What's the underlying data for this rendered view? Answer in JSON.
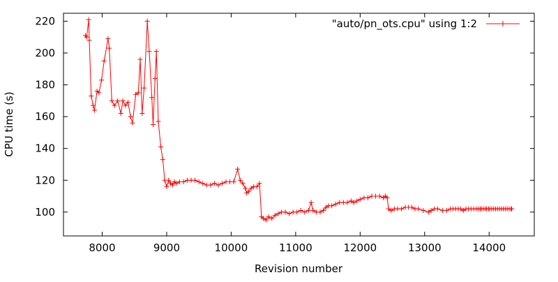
{
  "chart_data": {
    "type": "line",
    "title": "",
    "xlabel": "Revision number",
    "ylabel": "CPU time (s)",
    "xlim": [
      7400,
      14700
    ],
    "ylim": [
      85,
      225
    ],
    "grid": false,
    "legend_position": "top-right",
    "marker": "plus",
    "x_ticks": [
      8000,
      9000,
      10000,
      11000,
      12000,
      13000,
      14000
    ],
    "y_ticks": [
      100,
      120,
      140,
      160,
      180,
      200,
      220
    ],
    "series": [
      {
        "name": "\"auto/pn_ots.cpu\" using 1:2",
        "color": "#ff0000",
        "points": [
          [
            7740,
            211
          ],
          [
            7760,
            210
          ],
          [
            7790,
            221
          ],
          [
            7800,
            208
          ],
          [
            7830,
            173
          ],
          [
            7860,
            167
          ],
          [
            7880,
            164
          ],
          [
            7920,
            176
          ],
          [
            7950,
            175
          ],
          [
            7990,
            183
          ],
          [
            8030,
            195
          ],
          [
            8090,
            209
          ],
          [
            8110,
            203
          ],
          [
            8150,
            170
          ],
          [
            8190,
            167
          ],
          [
            8240,
            170
          ],
          [
            8290,
            162
          ],
          [
            8320,
            170
          ],
          [
            8360,
            167
          ],
          [
            8400,
            169
          ],
          [
            8440,
            160
          ],
          [
            8470,
            156
          ],
          [
            8520,
            174
          ],
          [
            8560,
            175
          ],
          [
            8590,
            196
          ],
          [
            8620,
            162
          ],
          [
            8650,
            178
          ],
          [
            8700,
            220
          ],
          [
            8730,
            201
          ],
          [
            8770,
            172
          ],
          [
            8790,
            155
          ],
          [
            8820,
            184
          ],
          [
            8840,
            201
          ],
          [
            8870,
            157
          ],
          [
            8910,
            141
          ],
          [
            8940,
            133
          ],
          [
            8970,
            120
          ],
          [
            9000,
            116
          ],
          [
            9030,
            120
          ],
          [
            9060,
            118
          ],
          [
            9090,
            117
          ],
          [
            9120,
            119
          ],
          [
            9150,
            118
          ],
          [
            9200,
            119
          ],
          [
            9260,
            119
          ],
          [
            9320,
            120
          ],
          [
            9380,
            120
          ],
          [
            9440,
            120
          ],
          [
            9500,
            119
          ],
          [
            9560,
            118
          ],
          [
            9620,
            117
          ],
          [
            9680,
            117
          ],
          [
            9740,
            118
          ],
          [
            9800,
            117
          ],
          [
            9860,
            118
          ],
          [
            9920,
            119
          ],
          [
            9980,
            119
          ],
          [
            10040,
            119
          ],
          [
            10100,
            127
          ],
          [
            10140,
            120
          ],
          [
            10180,
            118
          ],
          [
            10220,
            115
          ],
          [
            10240,
            112
          ],
          [
            10270,
            113
          ],
          [
            10310,
            115
          ],
          [
            10350,
            116
          ],
          [
            10400,
            116
          ],
          [
            10440,
            118
          ],
          [
            10470,
            97
          ],
          [
            10500,
            96
          ],
          [
            10540,
            95
          ],
          [
            10580,
            97
          ],
          [
            10630,
            96
          ],
          [
            10680,
            98
          ],
          [
            10730,
            99
          ],
          [
            10780,
            100
          ],
          [
            10840,
            100
          ],
          [
            10900,
            99
          ],
          [
            10960,
            100
          ],
          [
            11020,
            100
          ],
          [
            11080,
            101
          ],
          [
            11140,
            100
          ],
          [
            11200,
            101
          ],
          [
            11240,
            106
          ],
          [
            11270,
            101
          ],
          [
            11320,
            100
          ],
          [
            11380,
            100
          ],
          [
            11430,
            101
          ],
          [
            11470,
            103
          ],
          [
            11510,
            104
          ],
          [
            11560,
            104
          ],
          [
            11620,
            105
          ],
          [
            11680,
            106
          ],
          [
            11740,
            106
          ],
          [
            11800,
            106
          ],
          [
            11860,
            107
          ],
          [
            11900,
            106
          ],
          [
            11950,
            107
          ],
          [
            12000,
            108
          ],
          [
            12060,
            109
          ],
          [
            12120,
            109
          ],
          [
            12180,
            110
          ],
          [
            12240,
            110
          ],
          [
            12300,
            110
          ],
          [
            12360,
            109
          ],
          [
            12390,
            110
          ],
          [
            12420,
            109
          ],
          [
            12440,
            102
          ],
          [
            12480,
            101
          ],
          [
            12530,
            102
          ],
          [
            12580,
            102
          ],
          [
            12640,
            102
          ],
          [
            12700,
            103
          ],
          [
            12750,
            103
          ],
          [
            12800,
            103
          ],
          [
            12850,
            102
          ],
          [
            12900,
            102
          ],
          [
            12980,
            101
          ],
          [
            13060,
            100
          ],
          [
            13100,
            101
          ],
          [
            13150,
            102
          ],
          [
            13200,
            102
          ],
          [
            13280,
            101
          ],
          [
            13340,
            101
          ],
          [
            13400,
            102
          ],
          [
            13440,
            102
          ],
          [
            13480,
            102
          ],
          [
            13520,
            102
          ],
          [
            13560,
            102
          ],
          [
            13600,
            101
          ],
          [
            13640,
            102
          ],
          [
            13680,
            102
          ],
          [
            13720,
            102
          ],
          [
            13760,
            102
          ],
          [
            13800,
            102
          ],
          [
            13830,
            102
          ],
          [
            13860,
            102
          ],
          [
            13880,
            102
          ],
          [
            13910,
            102
          ],
          [
            13940,
            102
          ],
          [
            13960,
            102
          ],
          [
            13990,
            102
          ],
          [
            14010,
            102
          ],
          [
            14040,
            102
          ],
          [
            14070,
            102
          ],
          [
            14100,
            102
          ],
          [
            14130,
            102
          ],
          [
            14160,
            102
          ],
          [
            14190,
            102
          ],
          [
            14220,
            102
          ],
          [
            14250,
            102
          ],
          [
            14280,
            102
          ],
          [
            14310,
            102
          ],
          [
            14340,
            102
          ],
          [
            14350,
            102
          ]
        ]
      }
    ]
  }
}
